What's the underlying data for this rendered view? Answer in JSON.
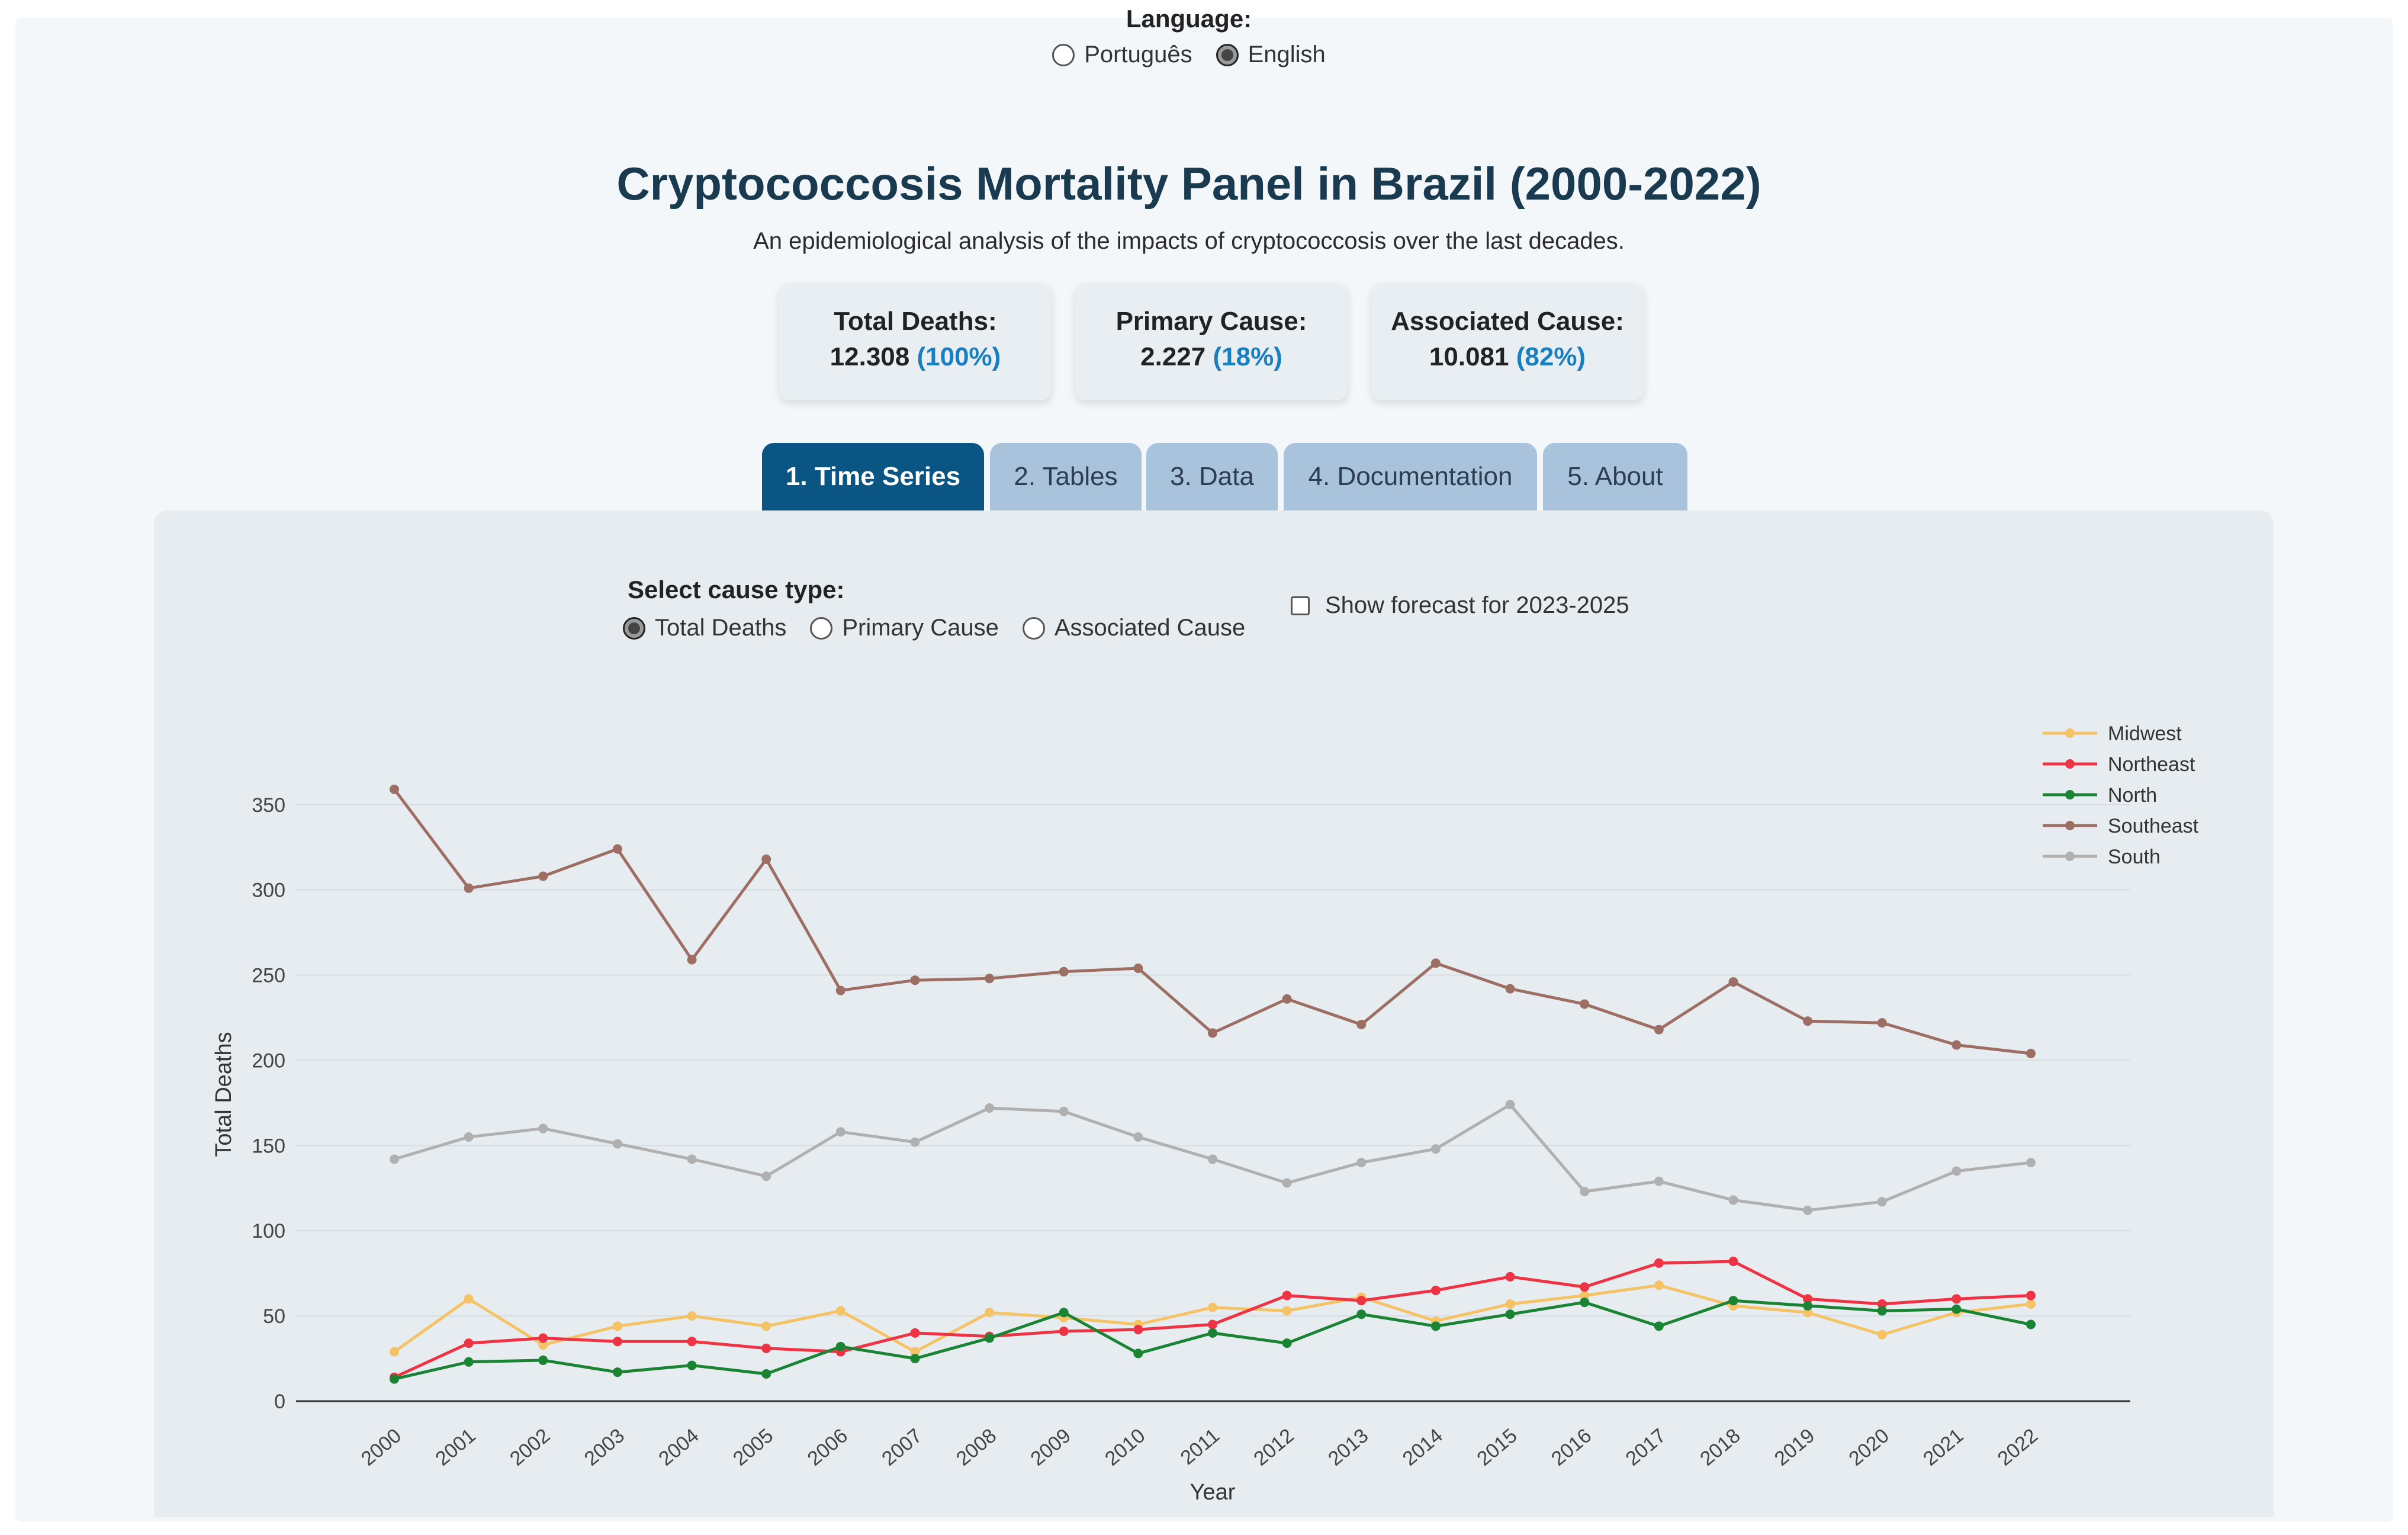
{
  "language": {
    "title": "Language:",
    "options": [
      {
        "label": "Português",
        "checked": false
      },
      {
        "label": "English",
        "checked": true
      }
    ]
  },
  "header": {
    "title": "Cryptococcosis Mortality Panel in Brazil (2000-2022)",
    "subtitle": "An epidemiological analysis of the impacts of cryptococcosis over the last decades."
  },
  "stats": [
    {
      "label": "Total Deaths:",
      "value": "12.308",
      "pct": "(100%)"
    },
    {
      "label": "Primary Cause:",
      "value": "2.227",
      "pct": "(18%)"
    },
    {
      "label": "Associated Cause:",
      "value": "10.081",
      "pct": "(82%)"
    }
  ],
  "tabs": [
    {
      "label": "1. Time Series",
      "active": true
    },
    {
      "label": "2. Tables",
      "active": false
    },
    {
      "label": "3. Data",
      "active": false
    },
    {
      "label": "4. Documentation",
      "active": false
    },
    {
      "label": "5. About",
      "active": false
    }
  ],
  "controls": {
    "cause_title": "Select cause type:",
    "cause_options": [
      {
        "label": "Total Deaths",
        "checked": true
      },
      {
        "label": "Primary Cause",
        "checked": false
      },
      {
        "label": "Associated Cause",
        "checked": false
      }
    ],
    "forecast_label": "Show forecast for 2023-2025",
    "forecast_checked": false
  },
  "chart_data": {
    "type": "line",
    "xlabel": "Year",
    "ylabel": "Total Deaths",
    "ylim": [
      0,
      360
    ],
    "yticks": [
      0,
      50,
      100,
      150,
      200,
      250,
      300,
      350
    ],
    "grid": true,
    "legend_position": "top-right",
    "x": [
      "2000",
      "2001",
      "2002",
      "2003",
      "2004",
      "2005",
      "2006",
      "2007",
      "2008",
      "2009",
      "2010",
      "2011",
      "2012",
      "2013",
      "2014",
      "2015",
      "2016",
      "2017",
      "2018",
      "2019",
      "2020",
      "2021",
      "2022"
    ],
    "series": [
      {
        "name": "Midwest",
        "color": "#f5c266",
        "values": [
          29,
          60,
          33,
          44,
          50,
          44,
          53,
          29,
          52,
          49,
          45,
          55,
          53,
          61,
          47,
          57,
          62,
          68,
          56,
          52,
          39,
          52,
          57
        ]
      },
      {
        "name": "Northeast",
        "color": "#ee3344",
        "values": [
          14,
          34,
          37,
          35,
          35,
          31,
          29,
          40,
          38,
          41,
          42,
          45,
          62,
          59,
          65,
          73,
          67,
          81,
          82,
          60,
          57,
          60,
          62
        ]
      },
      {
        "name": "North",
        "color": "#1a8434",
        "values": [
          13,
          23,
          24,
          17,
          21,
          16,
          32,
          25,
          37,
          52,
          28,
          40,
          34,
          51,
          44,
          51,
          58,
          44,
          59,
          56,
          53,
          54,
          45
        ]
      },
      {
        "name": "Southeast",
        "color": "#9d6e63",
        "values": [
          359,
          301,
          308,
          324,
          259,
          318,
          241,
          247,
          248,
          252,
          254,
          216,
          236,
          221,
          257,
          242,
          233,
          218,
          246,
          223,
          222,
          209,
          204
        ]
      },
      {
        "name": "South",
        "color": "#b0b0b0",
        "values": [
          142,
          155,
          160,
          151,
          142,
          132,
          158,
          152,
          172,
          170,
          155,
          142,
          128,
          140,
          148,
          174,
          123,
          129,
          118,
          112,
          117,
          135,
          140
        ]
      }
    ]
  }
}
